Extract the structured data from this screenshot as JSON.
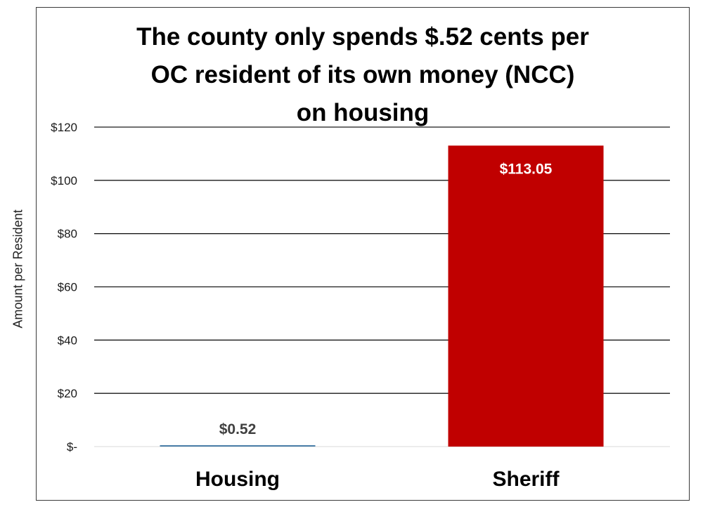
{
  "chart_data": {
    "type": "bar",
    "title_lines": [
      "The county only spends $.52 cents per",
      "OC resident of its own money (NCC)",
      "on housing"
    ],
    "xlabel": "",
    "ylabel": "Amount per Resident",
    "categories": [
      "Housing",
      "Sheriff"
    ],
    "values": [
      0.52,
      113.05
    ],
    "data_labels": [
      "$0.52",
      "$113.05"
    ],
    "bar_colors": [
      "#4a7fa8",
      "#c00000"
    ],
    "data_label_colors": [
      "#404040",
      "#ffffff"
    ],
    "ylim": [
      0,
      120
    ],
    "y_ticks": [
      0,
      20,
      40,
      60,
      80,
      100,
      120
    ],
    "y_tick_labels": [
      "$-",
      "$20",
      "$40",
      "$60",
      "$80",
      "$100",
      "$120"
    ],
    "grid": true,
    "legend": "none",
    "gridline_color": "#1a1a1a"
  }
}
